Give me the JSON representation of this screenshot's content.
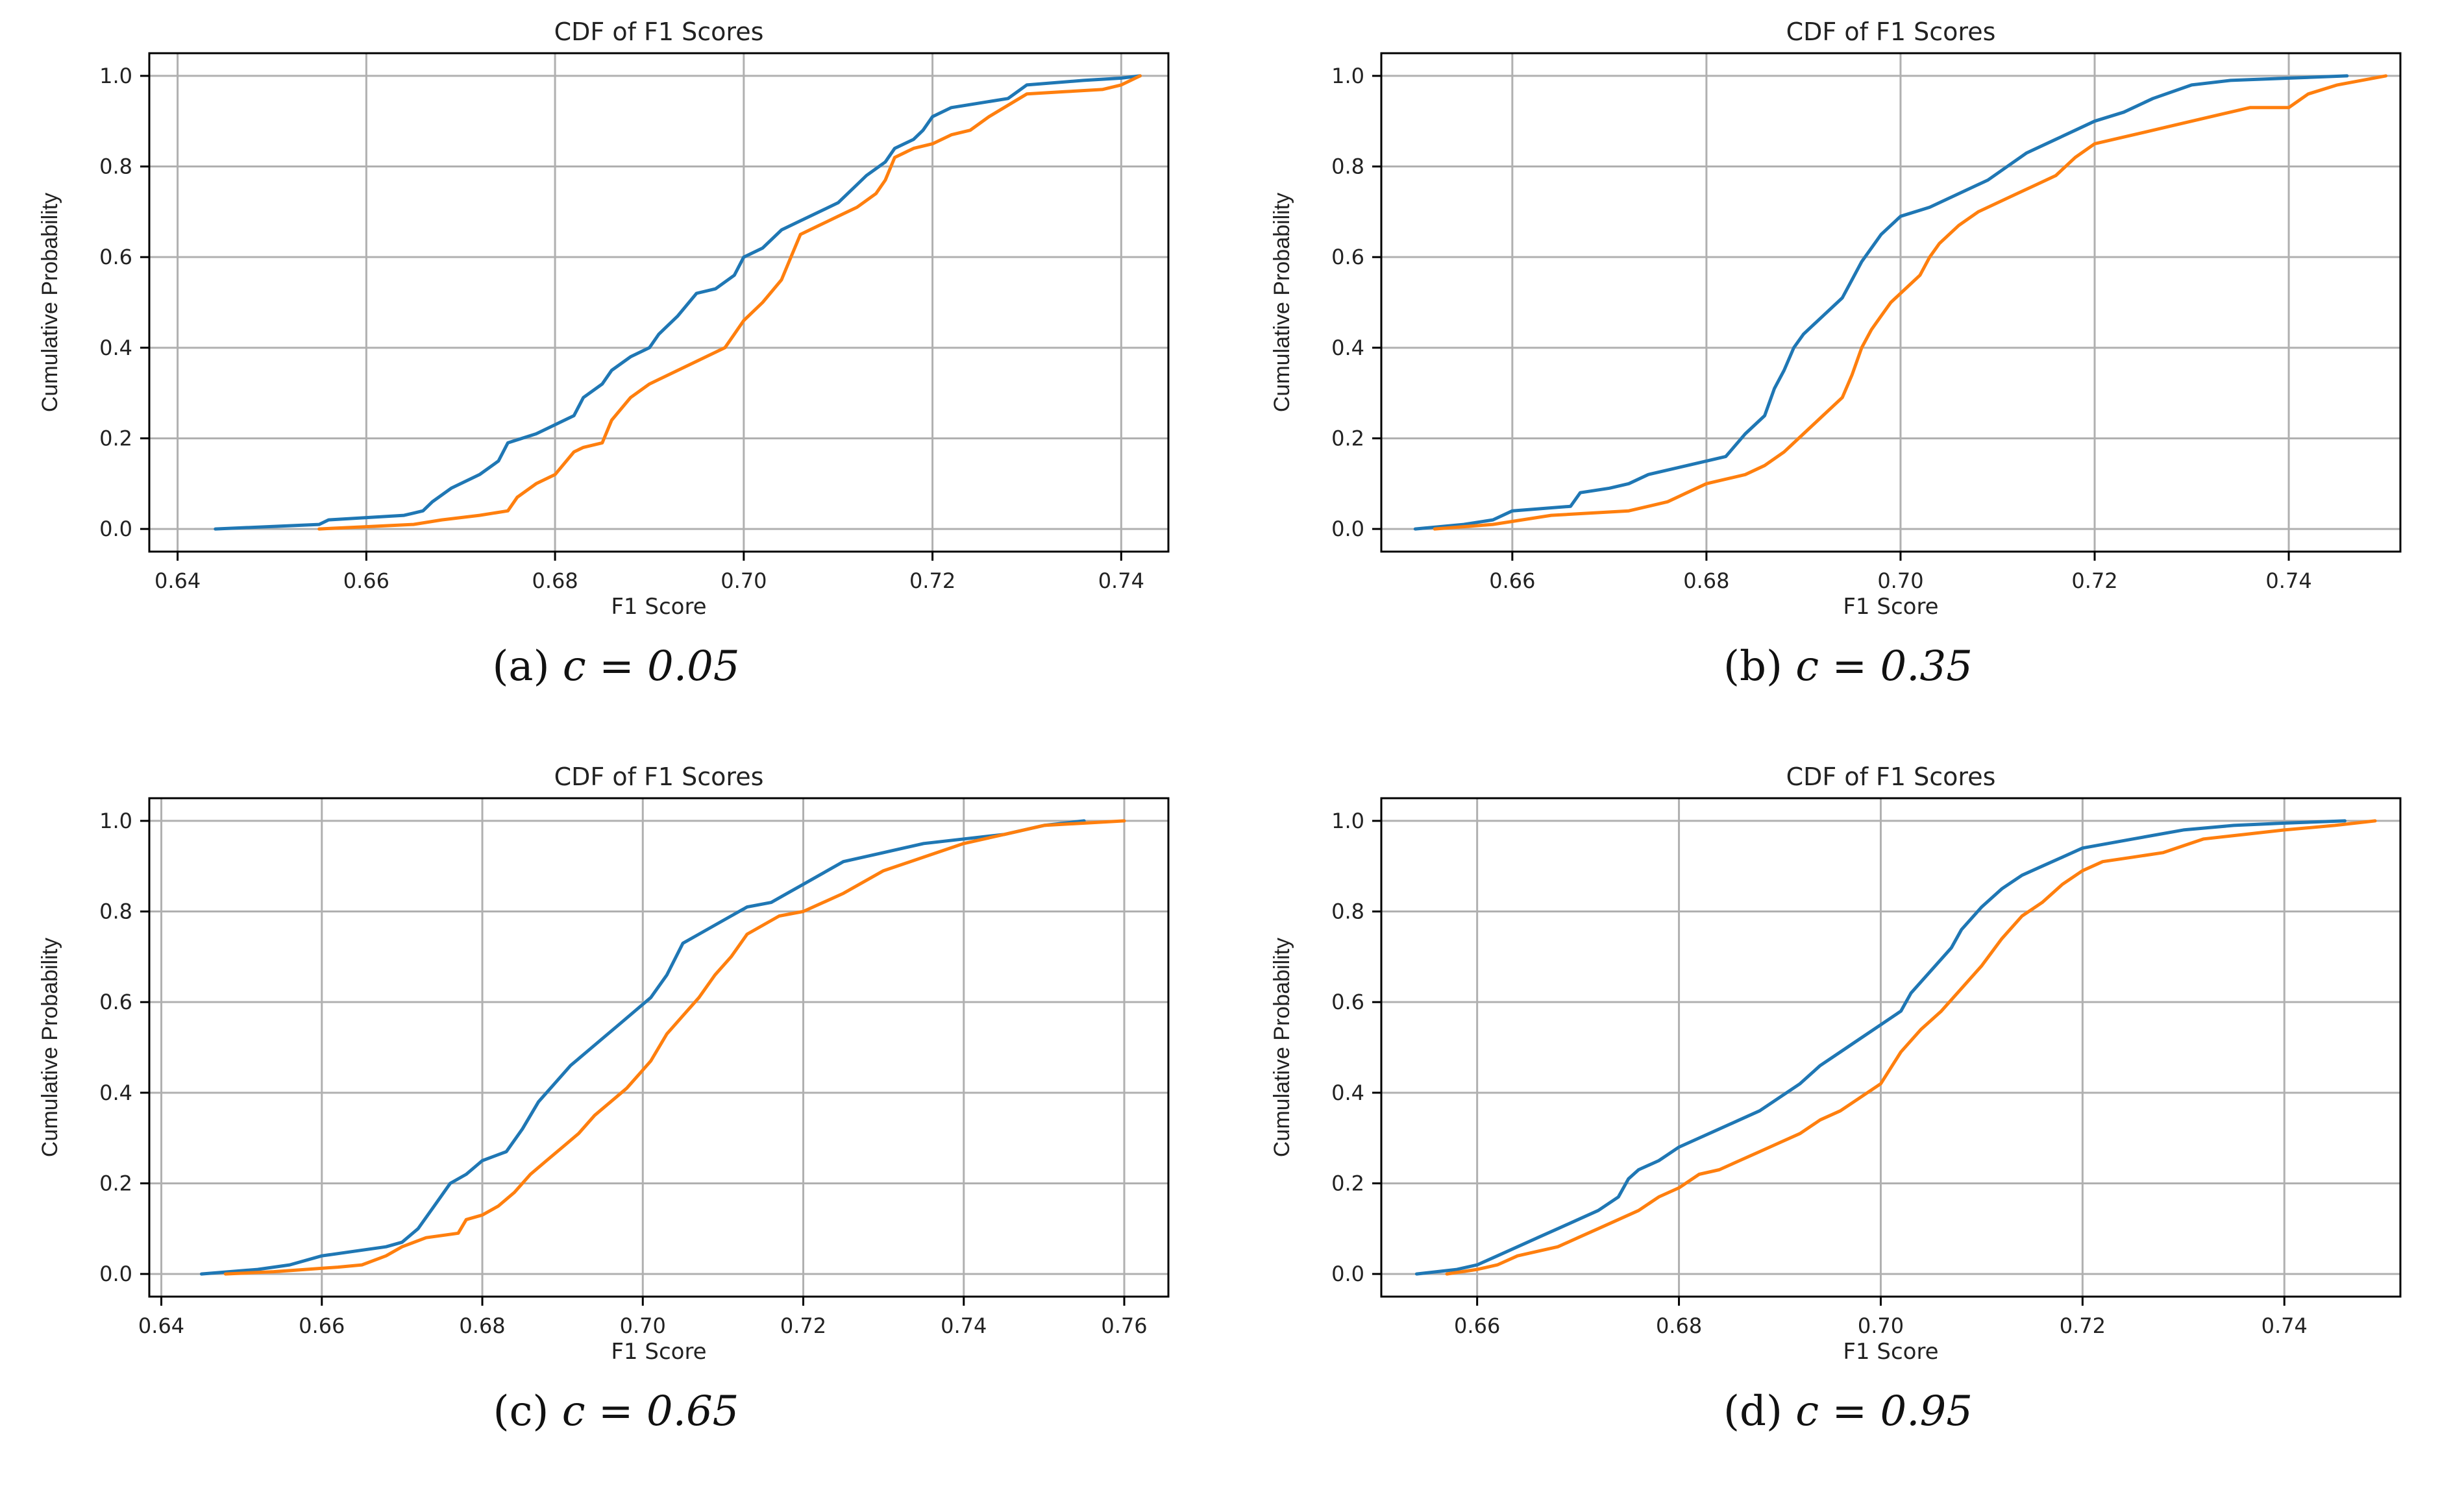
{
  "chart_data": [
    {
      "type": "line",
      "title": "CDF of F1 Scores",
      "xlabel": "F1 Score",
      "ylabel": "Cumulative Probability",
      "caption": {
        "prefix": "(a) ",
        "math": "c = 0.05"
      },
      "xlim": [
        0.637,
        0.745
      ],
      "ylim": [
        -0.05,
        1.05
      ],
      "xticks": [
        0.64,
        0.66,
        0.68,
        0.7,
        0.72,
        0.74
      ],
      "xtick_labels": [
        "0.64",
        "0.66",
        "0.68",
        "0.70",
        "0.72",
        "0.74"
      ],
      "yticks": [
        0.0,
        0.2,
        0.4,
        0.6,
        0.8,
        1.0
      ],
      "ytick_labels": [
        "0.0",
        "0.2",
        "0.4",
        "0.6",
        "0.8",
        "1.0"
      ],
      "grid": true,
      "series": [
        {
          "color": "#1f77b4",
          "x": [
            0.644,
            0.655,
            0.656,
            0.664,
            0.666,
            0.667,
            0.669,
            0.672,
            0.674,
            0.675,
            0.678,
            0.68,
            0.681,
            0.682,
            0.683,
            0.685,
            0.686,
            0.688,
            0.69,
            0.691,
            0.693,
            0.695,
            0.697,
            0.699,
            0.7,
            0.702,
            0.704,
            0.706,
            0.708,
            0.71,
            0.712,
            0.713,
            0.715,
            0.716,
            0.718,
            0.719,
            0.72,
            0.722,
            0.728,
            0.73,
            0.736,
            0.74,
            0.742
          ],
          "y": [
            0.0,
            0.01,
            0.02,
            0.03,
            0.04,
            0.06,
            0.09,
            0.12,
            0.15,
            0.19,
            0.21,
            0.23,
            0.24,
            0.25,
            0.29,
            0.32,
            0.35,
            0.38,
            0.4,
            0.43,
            0.47,
            0.52,
            0.53,
            0.56,
            0.6,
            0.62,
            0.66,
            0.68,
            0.7,
            0.72,
            0.76,
            0.78,
            0.81,
            0.84,
            0.86,
            0.88,
            0.91,
            0.93,
            0.95,
            0.98,
            0.99,
            0.995,
            1.0
          ]
        },
        {
          "color": "#ff7f0e",
          "x": [
            0.655,
            0.66,
            0.665,
            0.668,
            0.672,
            0.675,
            0.676,
            0.678,
            0.68,
            0.682,
            0.683,
            0.685,
            0.686,
            0.688,
            0.69,
            0.692,
            0.694,
            0.696,
            0.698,
            0.699,
            0.7,
            0.702,
            0.704,
            0.705,
            0.706,
            0.708,
            0.71,
            0.712,
            0.714,
            0.715,
            0.716,
            0.718,
            0.72,
            0.722,
            0.724,
            0.726,
            0.73,
            0.734,
            0.738,
            0.74,
            0.742
          ],
          "y": [
            0.0,
            0.005,
            0.01,
            0.02,
            0.03,
            0.04,
            0.07,
            0.1,
            0.12,
            0.17,
            0.18,
            0.19,
            0.24,
            0.29,
            0.32,
            0.34,
            0.36,
            0.38,
            0.4,
            0.43,
            0.46,
            0.5,
            0.55,
            0.6,
            0.65,
            0.67,
            0.69,
            0.71,
            0.74,
            0.77,
            0.82,
            0.84,
            0.85,
            0.87,
            0.88,
            0.91,
            0.96,
            0.965,
            0.97,
            0.98,
            1.0
          ]
        }
      ]
    },
    {
      "type": "line",
      "title": "CDF of F1 Scores",
      "xlabel": "F1 Score",
      "ylabel": "Cumulative Probability",
      "caption": {
        "prefix": "(b) ",
        "math": "c = 0.35"
      },
      "xlim": [
        0.6465,
        0.7515
      ],
      "ylim": [
        -0.05,
        1.05
      ],
      "xticks": [
        0.66,
        0.68,
        0.7,
        0.72,
        0.74
      ],
      "xtick_labels": [
        "0.66",
        "0.68",
        "0.70",
        "0.72",
        "0.74"
      ],
      "yticks": [
        0.0,
        0.2,
        0.4,
        0.6,
        0.8,
        1.0
      ],
      "ytick_labels": [
        "0.0",
        "0.2",
        "0.4",
        "0.6",
        "0.8",
        "1.0"
      ],
      "grid": true,
      "series": [
        {
          "color": "#1f77b4",
          "x": [
            0.65,
            0.655,
            0.658,
            0.66,
            0.666,
            0.667,
            0.67,
            0.672,
            0.674,
            0.676,
            0.68,
            0.682,
            0.684,
            0.686,
            0.687,
            0.688,
            0.689,
            0.69,
            0.692,
            0.694,
            0.695,
            0.696,
            0.697,
            0.698,
            0.7,
            0.703,
            0.706,
            0.709,
            0.711,
            0.713,
            0.716,
            0.718,
            0.72,
            0.723,
            0.726,
            0.73,
            0.734,
            0.74,
            0.746
          ],
          "y": [
            0.0,
            0.01,
            0.02,
            0.04,
            0.05,
            0.08,
            0.09,
            0.1,
            0.12,
            0.13,
            0.15,
            0.16,
            0.21,
            0.25,
            0.31,
            0.35,
            0.4,
            0.43,
            0.47,
            0.51,
            0.55,
            0.59,
            0.62,
            0.65,
            0.69,
            0.71,
            0.74,
            0.77,
            0.8,
            0.83,
            0.86,
            0.88,
            0.9,
            0.92,
            0.95,
            0.98,
            0.99,
            0.995,
            1.0
          ]
        },
        {
          "color": "#ff7f0e",
          "x": [
            0.652,
            0.658,
            0.664,
            0.672,
            0.676,
            0.678,
            0.68,
            0.682,
            0.684,
            0.686,
            0.688,
            0.69,
            0.692,
            0.694,
            0.695,
            0.696,
            0.697,
            0.698,
            0.699,
            0.7,
            0.702,
            0.703,
            0.704,
            0.706,
            0.708,
            0.712,
            0.714,
            0.716,
            0.718,
            0.72,
            0.724,
            0.728,
            0.732,
            0.736,
            0.74,
            0.742,
            0.745,
            0.75
          ],
          "y": [
            0.0,
            0.01,
            0.03,
            0.04,
            0.06,
            0.08,
            0.1,
            0.11,
            0.12,
            0.14,
            0.17,
            0.21,
            0.25,
            0.29,
            0.34,
            0.4,
            0.44,
            0.47,
            0.5,
            0.52,
            0.56,
            0.6,
            0.63,
            0.67,
            0.7,
            0.74,
            0.76,
            0.78,
            0.82,
            0.85,
            0.87,
            0.89,
            0.91,
            0.93,
            0.93,
            0.96,
            0.98,
            1.0
          ]
        }
      ]
    },
    {
      "type": "line",
      "title": "CDF of F1 Scores",
      "xlabel": "F1 Score",
      "ylabel": "Cumulative Probability",
      "caption": {
        "prefix": "(c) ",
        "math": "c = 0.65"
      },
      "xlim": [
        0.6385,
        0.7655
      ],
      "ylim": [
        -0.05,
        1.05
      ],
      "xticks": [
        0.64,
        0.66,
        0.68,
        0.7,
        0.72,
        0.74,
        0.76
      ],
      "xtick_labels": [
        "0.64",
        "0.66",
        "0.68",
        "0.70",
        "0.72",
        "0.74",
        "0.76"
      ],
      "yticks": [
        0.0,
        0.2,
        0.4,
        0.6,
        0.8,
        1.0
      ],
      "ytick_labels": [
        "0.0",
        "0.2",
        "0.4",
        "0.6",
        "0.8",
        "1.0"
      ],
      "grid": true,
      "series": [
        {
          "color": "#1f77b4",
          "x": [
            0.645,
            0.652,
            0.656,
            0.66,
            0.664,
            0.668,
            0.67,
            0.672,
            0.674,
            0.676,
            0.678,
            0.68,
            0.683,
            0.685,
            0.687,
            0.689,
            0.691,
            0.693,
            0.695,
            0.697,
            0.699,
            0.701,
            0.703,
            0.705,
            0.707,
            0.709,
            0.711,
            0.713,
            0.716,
            0.718,
            0.72,
            0.722,
            0.725,
            0.73,
            0.735,
            0.74,
            0.745,
            0.75,
            0.755
          ],
          "y": [
            0.0,
            0.01,
            0.02,
            0.04,
            0.05,
            0.06,
            0.07,
            0.1,
            0.15,
            0.2,
            0.22,
            0.25,
            0.27,
            0.32,
            0.38,
            0.42,
            0.46,
            0.49,
            0.52,
            0.55,
            0.58,
            0.61,
            0.66,
            0.73,
            0.75,
            0.77,
            0.79,
            0.81,
            0.82,
            0.84,
            0.86,
            0.88,
            0.91,
            0.93,
            0.95,
            0.96,
            0.97,
            0.99,
            1.0
          ]
        },
        {
          "color": "#ff7f0e",
          "x": [
            0.648,
            0.654,
            0.658,
            0.662,
            0.665,
            0.668,
            0.67,
            0.673,
            0.677,
            0.678,
            0.68,
            0.682,
            0.684,
            0.686,
            0.688,
            0.69,
            0.692,
            0.694,
            0.696,
            0.698,
            0.7,
            0.701,
            0.703,
            0.705,
            0.707,
            0.709,
            0.711,
            0.713,
            0.715,
            0.717,
            0.72,
            0.725,
            0.73,
            0.735,
            0.74,
            0.745,
            0.75,
            0.76
          ],
          "y": [
            0.0,
            0.005,
            0.01,
            0.015,
            0.02,
            0.04,
            0.06,
            0.08,
            0.09,
            0.12,
            0.13,
            0.15,
            0.18,
            0.22,
            0.25,
            0.28,
            0.31,
            0.35,
            0.38,
            0.41,
            0.45,
            0.47,
            0.53,
            0.57,
            0.61,
            0.66,
            0.7,
            0.75,
            0.77,
            0.79,
            0.8,
            0.84,
            0.89,
            0.92,
            0.95,
            0.97,
            0.99,
            1.0
          ]
        }
      ]
    },
    {
      "type": "line",
      "title": "CDF of F1 Scores",
      "xlabel": "F1 Score",
      "ylabel": "Cumulative Probability",
      "caption": {
        "prefix": "(d) ",
        "math": "c = 0.95"
      },
      "xlim": [
        0.6505,
        0.7515
      ],
      "ylim": [
        -0.05,
        1.05
      ],
      "xticks": [
        0.66,
        0.68,
        0.7,
        0.72,
        0.74
      ],
      "xtick_labels": [
        "0.66",
        "0.68",
        "0.70",
        "0.72",
        "0.74"
      ],
      "yticks": [
        0.0,
        0.2,
        0.4,
        0.6,
        0.8,
        1.0
      ],
      "ytick_labels": [
        "0.0",
        "0.2",
        "0.4",
        "0.6",
        "0.8",
        "1.0"
      ],
      "grid": true,
      "series": [
        {
          "color": "#1f77b4",
          "x": [
            0.654,
            0.658,
            0.66,
            0.662,
            0.664,
            0.666,
            0.668,
            0.67,
            0.672,
            0.674,
            0.675,
            0.676,
            0.678,
            0.68,
            0.682,
            0.684,
            0.686,
            0.688,
            0.69,
            0.692,
            0.694,
            0.696,
            0.698,
            0.7,
            0.702,
            0.703,
            0.705,
            0.707,
            0.708,
            0.71,
            0.712,
            0.714,
            0.716,
            0.718,
            0.72,
            0.725,
            0.73,
            0.735,
            0.74,
            0.746
          ],
          "y": [
            0.0,
            0.01,
            0.02,
            0.04,
            0.06,
            0.08,
            0.1,
            0.12,
            0.14,
            0.17,
            0.21,
            0.23,
            0.25,
            0.28,
            0.3,
            0.32,
            0.34,
            0.36,
            0.39,
            0.42,
            0.46,
            0.49,
            0.52,
            0.55,
            0.58,
            0.62,
            0.67,
            0.72,
            0.76,
            0.81,
            0.85,
            0.88,
            0.9,
            0.92,
            0.94,
            0.96,
            0.98,
            0.99,
            0.995,
            1.0
          ]
        },
        {
          "color": "#ff7f0e",
          "x": [
            0.657,
            0.66,
            0.662,
            0.664,
            0.666,
            0.668,
            0.67,
            0.672,
            0.674,
            0.676,
            0.678,
            0.68,
            0.682,
            0.684,
            0.686,
            0.688,
            0.69,
            0.692,
            0.694,
            0.696,
            0.698,
            0.7,
            0.702,
            0.704,
            0.706,
            0.708,
            0.71,
            0.712,
            0.714,
            0.716,
            0.718,
            0.72,
            0.722,
            0.725,
            0.728,
            0.732,
            0.736,
            0.74,
            0.745,
            0.749
          ],
          "y": [
            0.0,
            0.01,
            0.02,
            0.04,
            0.05,
            0.06,
            0.08,
            0.1,
            0.12,
            0.14,
            0.17,
            0.19,
            0.22,
            0.23,
            0.25,
            0.27,
            0.29,
            0.31,
            0.34,
            0.36,
            0.39,
            0.42,
            0.49,
            0.54,
            0.58,
            0.63,
            0.68,
            0.74,
            0.79,
            0.82,
            0.86,
            0.89,
            0.91,
            0.92,
            0.93,
            0.96,
            0.97,
            0.98,
            0.99,
            1.0
          ]
        }
      ]
    }
  ]
}
